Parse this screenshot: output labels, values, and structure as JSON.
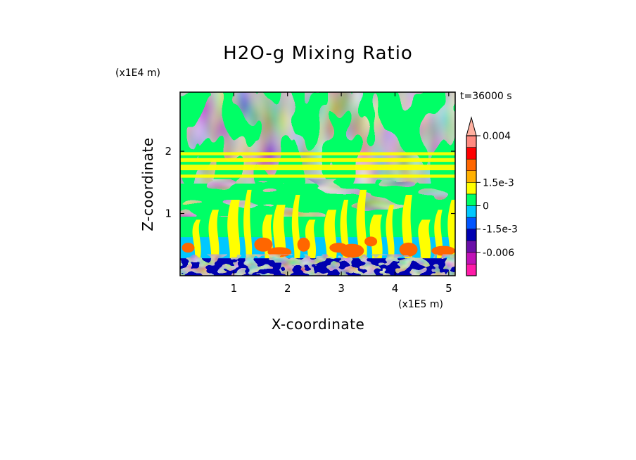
{
  "chart_data": {
    "type": "heatmap",
    "title": "H2O-g Mixing Ratio",
    "xlabel": "X-coordinate",
    "ylabel": "Z-coordinate",
    "x_multiplier": "(x1E5 m)",
    "y_multiplier": "(x1E4 m)",
    "time_label": "t=36000 s",
    "xlim": [
      0,
      5.12
    ],
    "ylim": [
      0,
      2.95
    ],
    "x_ticks": [
      1,
      2,
      3,
      4,
      5
    ],
    "y_ticks": [
      1,
      2
    ],
    "x_tick_labels": [
      "1",
      "2",
      "3",
      "4",
      "5"
    ],
    "y_tick_labels": [
      "1",
      "2"
    ],
    "colorbar": {
      "levels_bottom_to_top": [
        -0.009,
        -0.006,
        -0.003,
        -0.0015,
        -0.00075,
        0,
        0.00075,
        0.0015,
        0.00225,
        0.003,
        0.0035,
        0.004
      ],
      "colors_bottom_to_top": [
        "#ff1aa8",
        "#c011b6",
        "#6a0fa8",
        "#0000b0",
        "#0055ff",
        "#00c8ff",
        "#00ff66",
        "#ffff00",
        "#ffb000",
        "#ff6600",
        "#ff0000",
        "#ff8a80",
        "#ffb0a0"
      ],
      "labels": [
        "0.004",
        "1.5e-3",
        "0",
        "-1.5e-3",
        "-0.006"
      ],
      "label_values": [
        0.004,
        0.0015,
        0,
        -0.0015,
        -0.006
      ]
    },
    "regions_description_values": {
      "upper_atmosphere_level": 0.00075,
      "mid_green_level": 0,
      "cyan_layer_level": -0.00075,
      "orange_plumes_level": 0.00225,
      "surface_layer_level": -0.003
    }
  }
}
